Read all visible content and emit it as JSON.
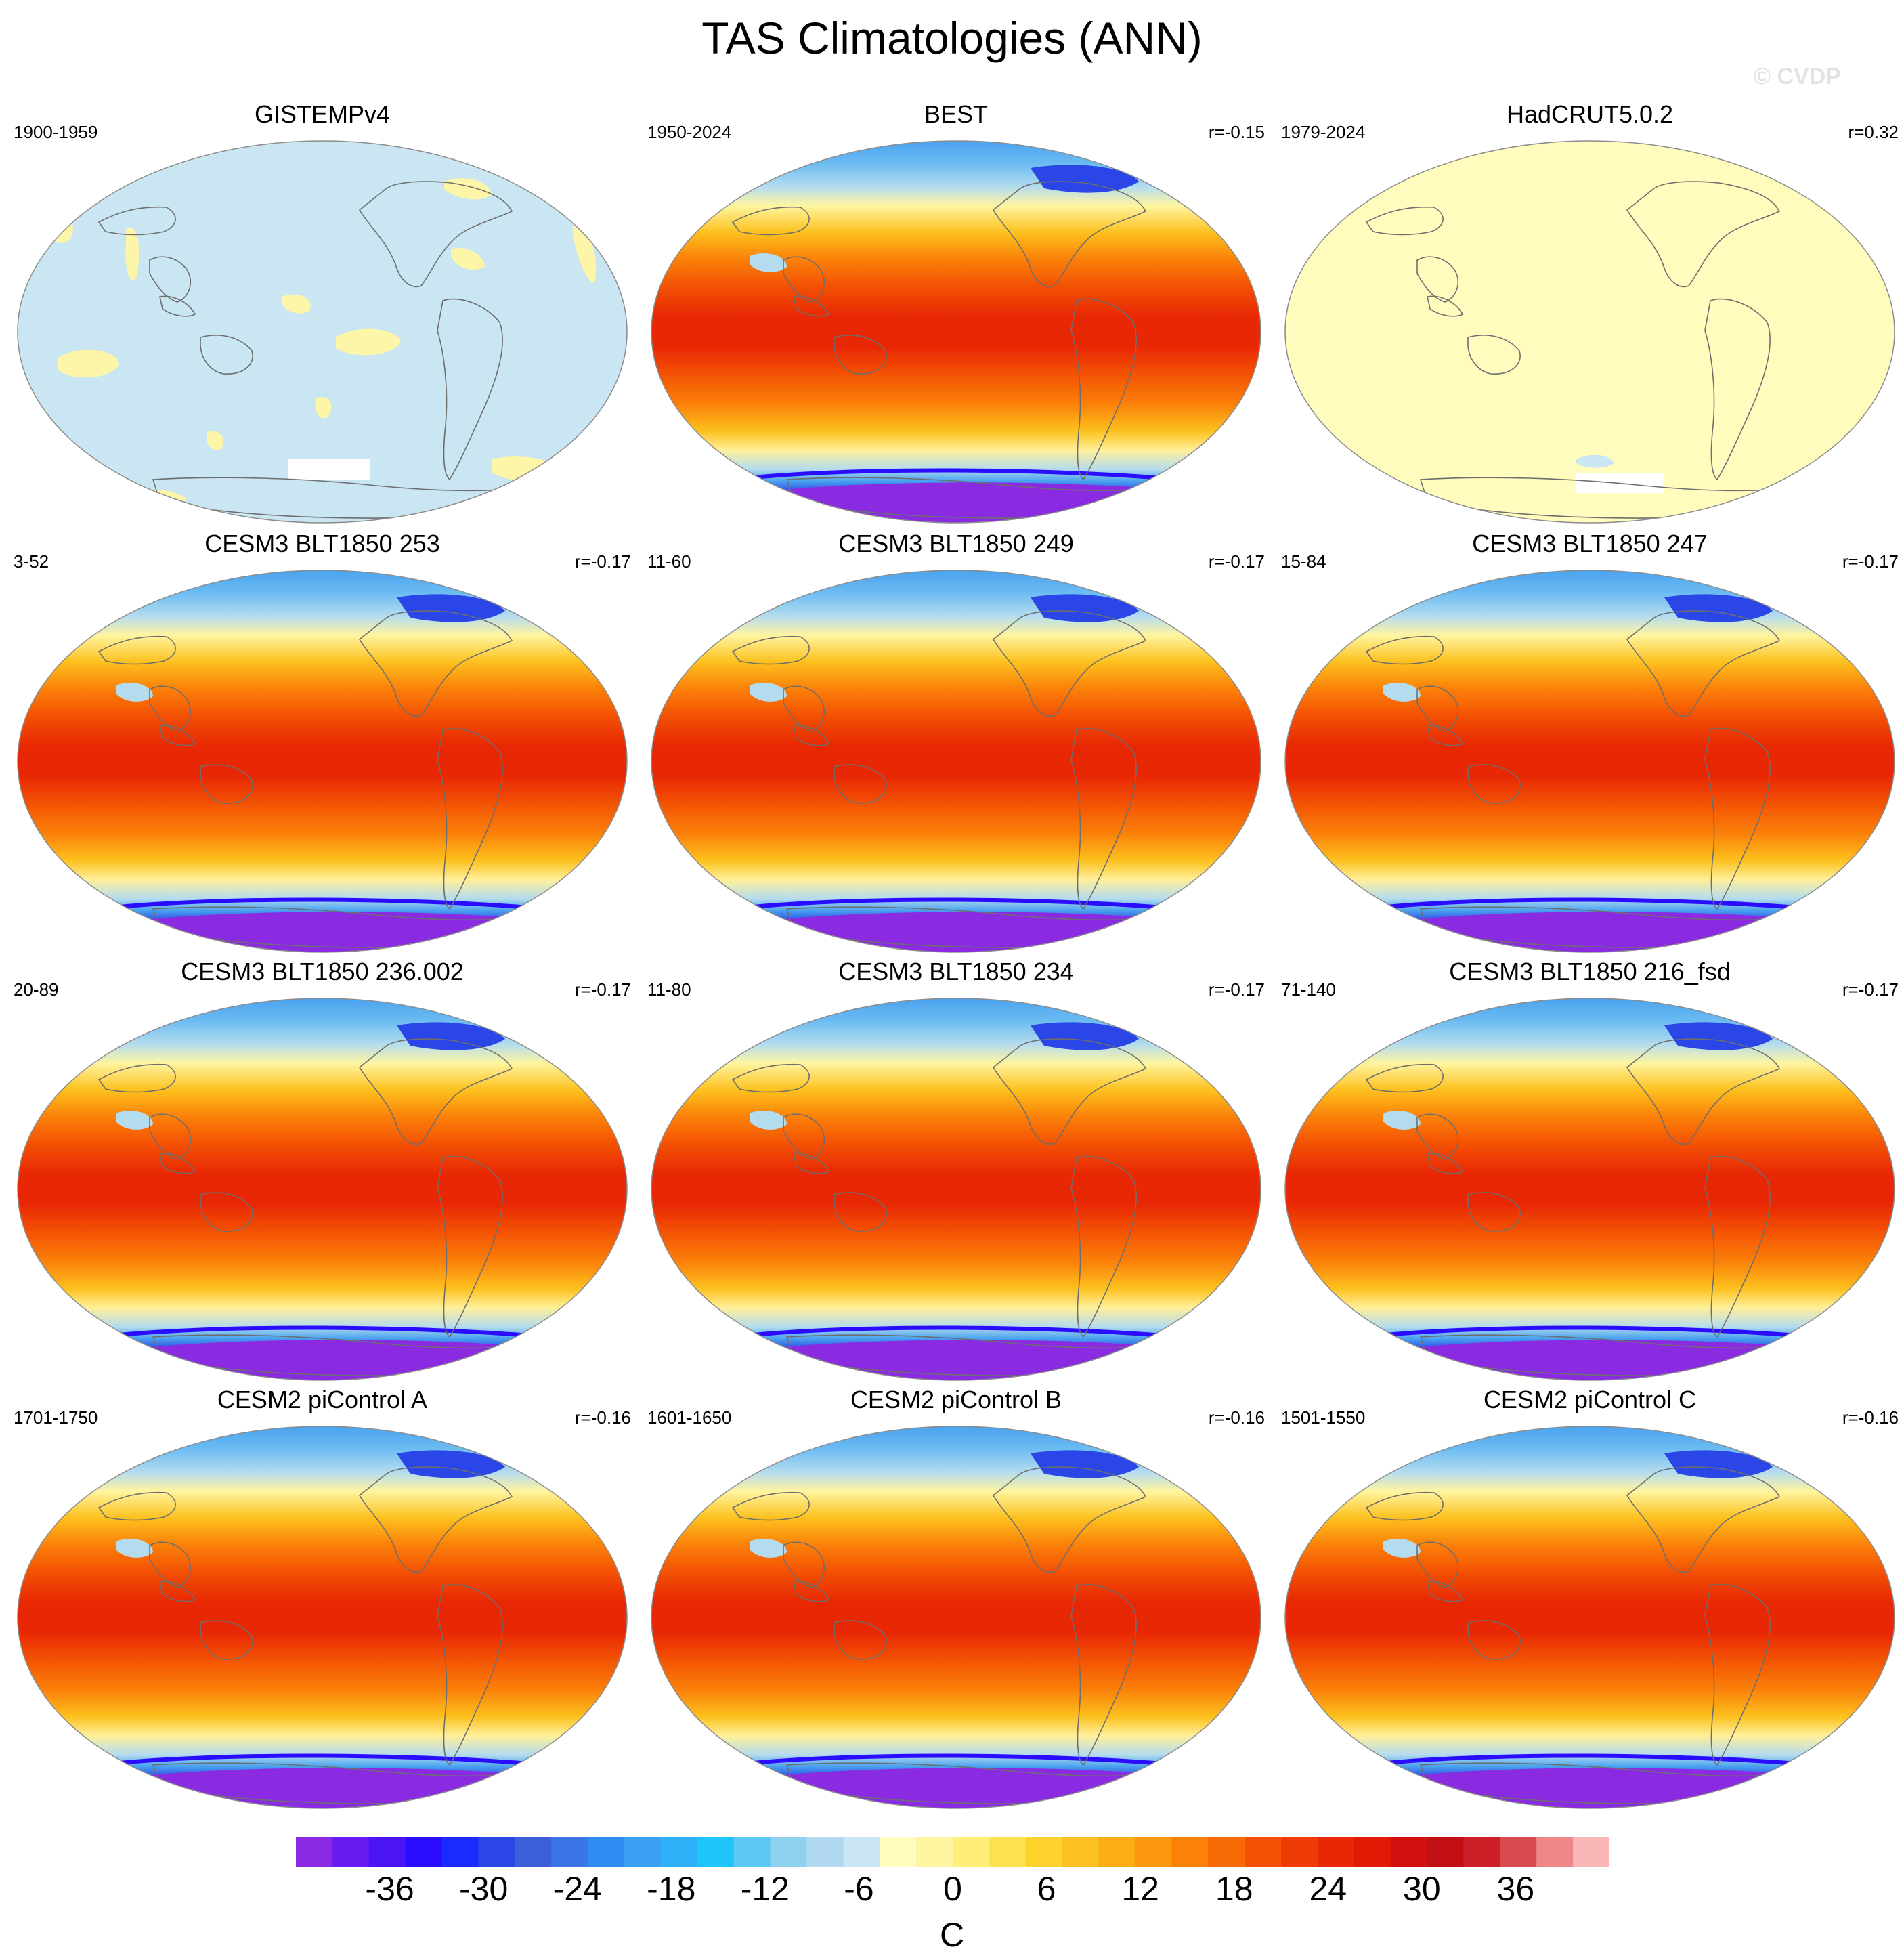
{
  "title": "TAS Climatologies (ANN)",
  "watermark": "© CVDP",
  "panels": [
    {
      "title": "GISTEMPv4",
      "period": "1900-1959",
      "corr": "",
      "style": "gistemp"
    },
    {
      "title": "BEST",
      "period": "1950-2024",
      "corr": "r=-0.15",
      "style": "best"
    },
    {
      "title": "HadCRUT5.0.2",
      "period": "1979-2024",
      "corr": "r=0.32",
      "style": "hadcrut"
    },
    {
      "title": "CESM3 BLT1850 253",
      "period": "3-52",
      "corr": "r=-0.17",
      "style": "model"
    },
    {
      "title": "CESM3 BLT1850 249",
      "period": "11-60",
      "corr": "r=-0.17",
      "style": "model"
    },
    {
      "title": "CESM3 BLT1850 247",
      "period": "15-84",
      "corr": "r=-0.17",
      "style": "model"
    },
    {
      "title": "CESM3 BLT1850 236.002",
      "period": "20-89",
      "corr": "r=-0.17",
      "style": "model"
    },
    {
      "title": "CESM3 BLT1850 234",
      "period": "11-80",
      "corr": "r=-0.17",
      "style": "model"
    },
    {
      "title": "CESM3 BLT1850 216_fsd",
      "period": "71-140",
      "corr": "r=-0.17",
      "style": "model"
    },
    {
      "title": "CESM2 piControl A",
      "period": "1701-1750",
      "corr": "r=-0.16",
      "style": "model"
    },
    {
      "title": "CESM2 piControl B",
      "period": "1601-1650",
      "corr": "r=-0.16",
      "style": "model"
    },
    {
      "title": "CESM2 piControl C",
      "period": "1501-1550",
      "corr": "r=-0.16",
      "style": "model"
    }
  ],
  "colorbar": {
    "units": "C",
    "tick_labels": [
      "-36",
      "-30",
      "-24",
      "-18",
      "-12",
      "-6",
      "0",
      "6",
      "12",
      "18",
      "24",
      "30",
      "36"
    ],
    "colors": [
      "#8a2be2",
      "#6a1cf0",
      "#4b14f5",
      "#2a0cff",
      "#1a2bff",
      "#2a46e6",
      "#3a5fd9",
      "#3d75e6",
      "#2f8cf0",
      "#3aa0f5",
      "#2cb0f7",
      "#1ec4fa",
      "#5cc8f3",
      "#8fd0ef",
      "#b0d8ee",
      "#c9e6f2",
      "#fffcbe",
      "#fff5a0",
      "#ffee7a",
      "#fde24f",
      "#fcd22b",
      "#fcc11e",
      "#fcad14",
      "#fc980e",
      "#fb8109",
      "#f86a06",
      "#f35204",
      "#ee3b03",
      "#e82804",
      "#e11a05",
      "#d40f0f",
      "#c20f14",
      "#cc1f27",
      "#d94a4f",
      "#ee8789",
      "#fbb6b7"
    ],
    "range": [
      -42,
      42
    ],
    "step": 2
  }
}
